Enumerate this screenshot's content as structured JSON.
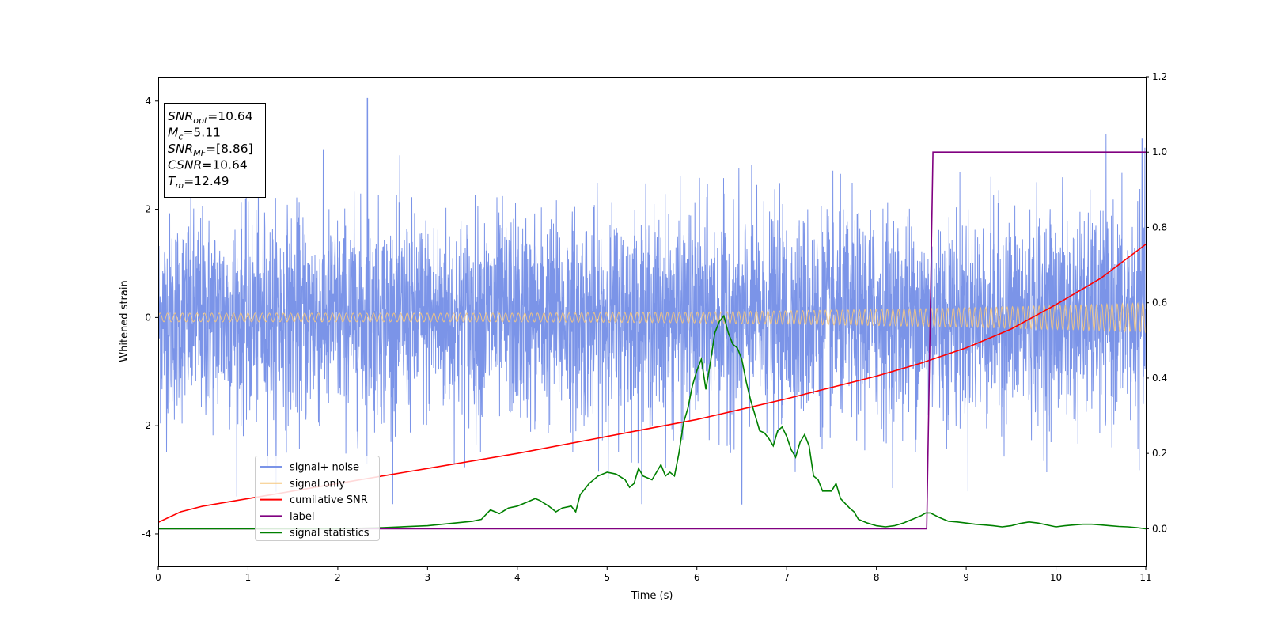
{
  "chart_data": {
    "type": "line",
    "xlabel": "Time (s)",
    "ylabel": "Whitened strain",
    "xlim": [
      0,
      11
    ],
    "ylim": [
      -4.6,
      4.45
    ],
    "y2lim": [
      -0.1,
      1.2
    ],
    "grid": false,
    "x_ticks": [
      0,
      1,
      2,
      3,
      4,
      5,
      6,
      7,
      8,
      9,
      10,
      11
    ],
    "y_ticks": [
      -4,
      -2,
      0,
      2,
      4
    ],
    "y2_ticks": [
      "0.0",
      "0.2",
      "0.4",
      "0.6",
      "0.8",
      "1.0",
      "1.2"
    ],
    "y2_tick_values": [
      0.0,
      0.2,
      0.4,
      0.6,
      0.8,
      1.0,
      1.2
    ],
    "legend_position": "lower-left",
    "stats_lines": [
      {
        "sym": "SNR",
        "sub": "opt",
        "val": "=10.64"
      },
      {
        "sym": "M",
        "sub": "c",
        "val": "=5.11"
      },
      {
        "sym": "SNR",
        "sub": "MF",
        "val": "=[8.86]"
      },
      {
        "sym": "CSNR",
        "sub": "",
        "val": "=10.64"
      },
      {
        "sym": "T",
        "sub": "m",
        "val": "=12.49"
      }
    ],
    "series": [
      {
        "name": "signal+ noise",
        "color": "#7b94e8",
        "axis": "left",
        "description": "noise band approx. between -2.5 and +2.5 with spikes reaching 4.05 at t~2.33 and -3.45 at t~6.5"
      },
      {
        "name": "signal only",
        "color": "#f5c77e",
        "axis": "left",
        "envelope": {
          "x": [
            0,
            2,
            4,
            6,
            8,
            9,
            10,
            11
          ],
          "amp": [
            0.08,
            0.08,
            0.08,
            0.1,
            0.15,
            0.18,
            0.22,
            0.27
          ]
        }
      },
      {
        "name": "cumilative SNR",
        "color": "#ff0000",
        "axis": "right",
        "x": [
          0,
          0.25,
          0.5,
          1,
          2,
          3,
          4,
          5,
          6,
          7,
          8,
          8.5,
          9,
          9.5,
          10,
          10.5,
          11
        ],
        "y": [
          0.017,
          0.045,
          0.06,
          0.08,
          0.12,
          0.16,
          0.2,
          0.245,
          0.29,
          0.345,
          0.405,
          0.44,
          0.48,
          0.53,
          0.595,
          0.665,
          0.755
        ]
      },
      {
        "name": "label",
        "color": "#800080",
        "axis": "right",
        "x": [
          0,
          8.56,
          8.63,
          11
        ],
        "y": [
          0,
          0,
          1,
          1
        ]
      },
      {
        "name": "signal statistics",
        "color": "#008000",
        "axis": "right",
        "x": [
          0,
          1,
          2,
          2.5,
          3,
          3.5,
          3.6,
          3.7,
          3.8,
          3.9,
          4.0,
          4.1,
          4.2,
          4.25,
          4.35,
          4.43,
          4.5,
          4.6,
          4.65,
          4.7,
          4.8,
          4.9,
          5.0,
          5.1,
          5.2,
          5.25,
          5.3,
          5.35,
          5.4,
          5.5,
          5.55,
          5.6,
          5.65,
          5.7,
          5.75,
          5.8,
          5.85,
          5.9,
          5.95,
          6.0,
          6.05,
          6.1,
          6.15,
          6.2,
          6.25,
          6.3,
          6.35,
          6.4,
          6.45,
          6.5,
          6.55,
          6.6,
          6.65,
          6.7,
          6.75,
          6.8,
          6.85,
          6.9,
          6.95,
          7.0,
          7.05,
          7.1,
          7.15,
          7.2,
          7.25,
          7.3,
          7.35,
          7.4,
          7.5,
          7.55,
          7.6,
          7.7,
          7.75,
          7.8,
          7.85,
          7.9,
          8.0,
          8.1,
          8.2,
          8.3,
          8.4,
          8.5,
          8.55,
          8.6,
          8.7,
          8.8,
          8.9,
          9.0,
          9.1,
          9.2,
          9.3,
          9.4,
          9.5,
          9.6,
          9.7,
          9.8,
          9.9,
          10.0,
          10.1,
          10.2,
          10.3,
          10.4,
          10.5,
          10.6,
          10.7,
          10.8,
          10.9,
          11.0
        ],
        "y": [
          0.0,
          0.0,
          0.0,
          0.003,
          0.008,
          0.02,
          0.025,
          0.05,
          0.04,
          0.055,
          0.06,
          0.07,
          0.08,
          0.075,
          0.06,
          0.045,
          0.055,
          0.06,
          0.045,
          0.09,
          0.12,
          0.14,
          0.15,
          0.145,
          0.13,
          0.11,
          0.12,
          0.16,
          0.14,
          0.13,
          0.15,
          0.17,
          0.14,
          0.15,
          0.14,
          0.2,
          0.28,
          0.32,
          0.38,
          0.42,
          0.45,
          0.37,
          0.44,
          0.52,
          0.55,
          0.565,
          0.52,
          0.49,
          0.48,
          0.45,
          0.39,
          0.34,
          0.3,
          0.26,
          0.255,
          0.24,
          0.22,
          0.26,
          0.27,
          0.245,
          0.21,
          0.19,
          0.23,
          0.25,
          0.22,
          0.14,
          0.13,
          0.1,
          0.1,
          0.12,
          0.08,
          0.055,
          0.045,
          0.025,
          0.02,
          0.015,
          0.008,
          0.005,
          0.008,
          0.015,
          0.025,
          0.035,
          0.042,
          0.042,
          0.03,
          0.02,
          0.018,
          0.015,
          0.012,
          0.01,
          0.008,
          0.005,
          0.008,
          0.014,
          0.018,
          0.015,
          0.01,
          0.005,
          0.008,
          0.01,
          0.012,
          0.012,
          0.01,
          0.008,
          0.006,
          0.005,
          0.003,
          0.0
        ]
      }
    ]
  }
}
